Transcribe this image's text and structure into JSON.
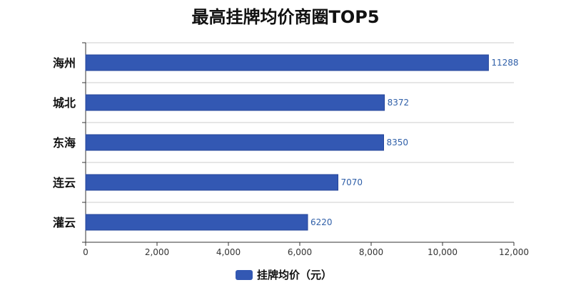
{
  "chart_data": {
    "type": "bar",
    "orientation": "horizontal",
    "title": "最高挂牌均价商圈TOP5",
    "categories": [
      "海州",
      "城北",
      "东海",
      "连云",
      "灌云"
    ],
    "series": [
      {
        "name": "挂牌均价（元）",
        "values": [
          11288,
          8372,
          8350,
          7070,
          6220
        ],
        "color": "#3358b3"
      }
    ],
    "xlim": [
      0,
      12000
    ],
    "xticks": [
      0,
      2000,
      4000,
      6000,
      8000,
      10000,
      12000
    ],
    "xtick_labels": [
      "0",
      "2,000",
      "4,000",
      "6,000",
      "8,000",
      "10,000",
      "12,000"
    ],
    "data_labels": [
      "11288",
      "8372",
      "8350",
      "7070",
      "6220"
    ],
    "grid": "horizontal",
    "legend": "bottom-center"
  }
}
